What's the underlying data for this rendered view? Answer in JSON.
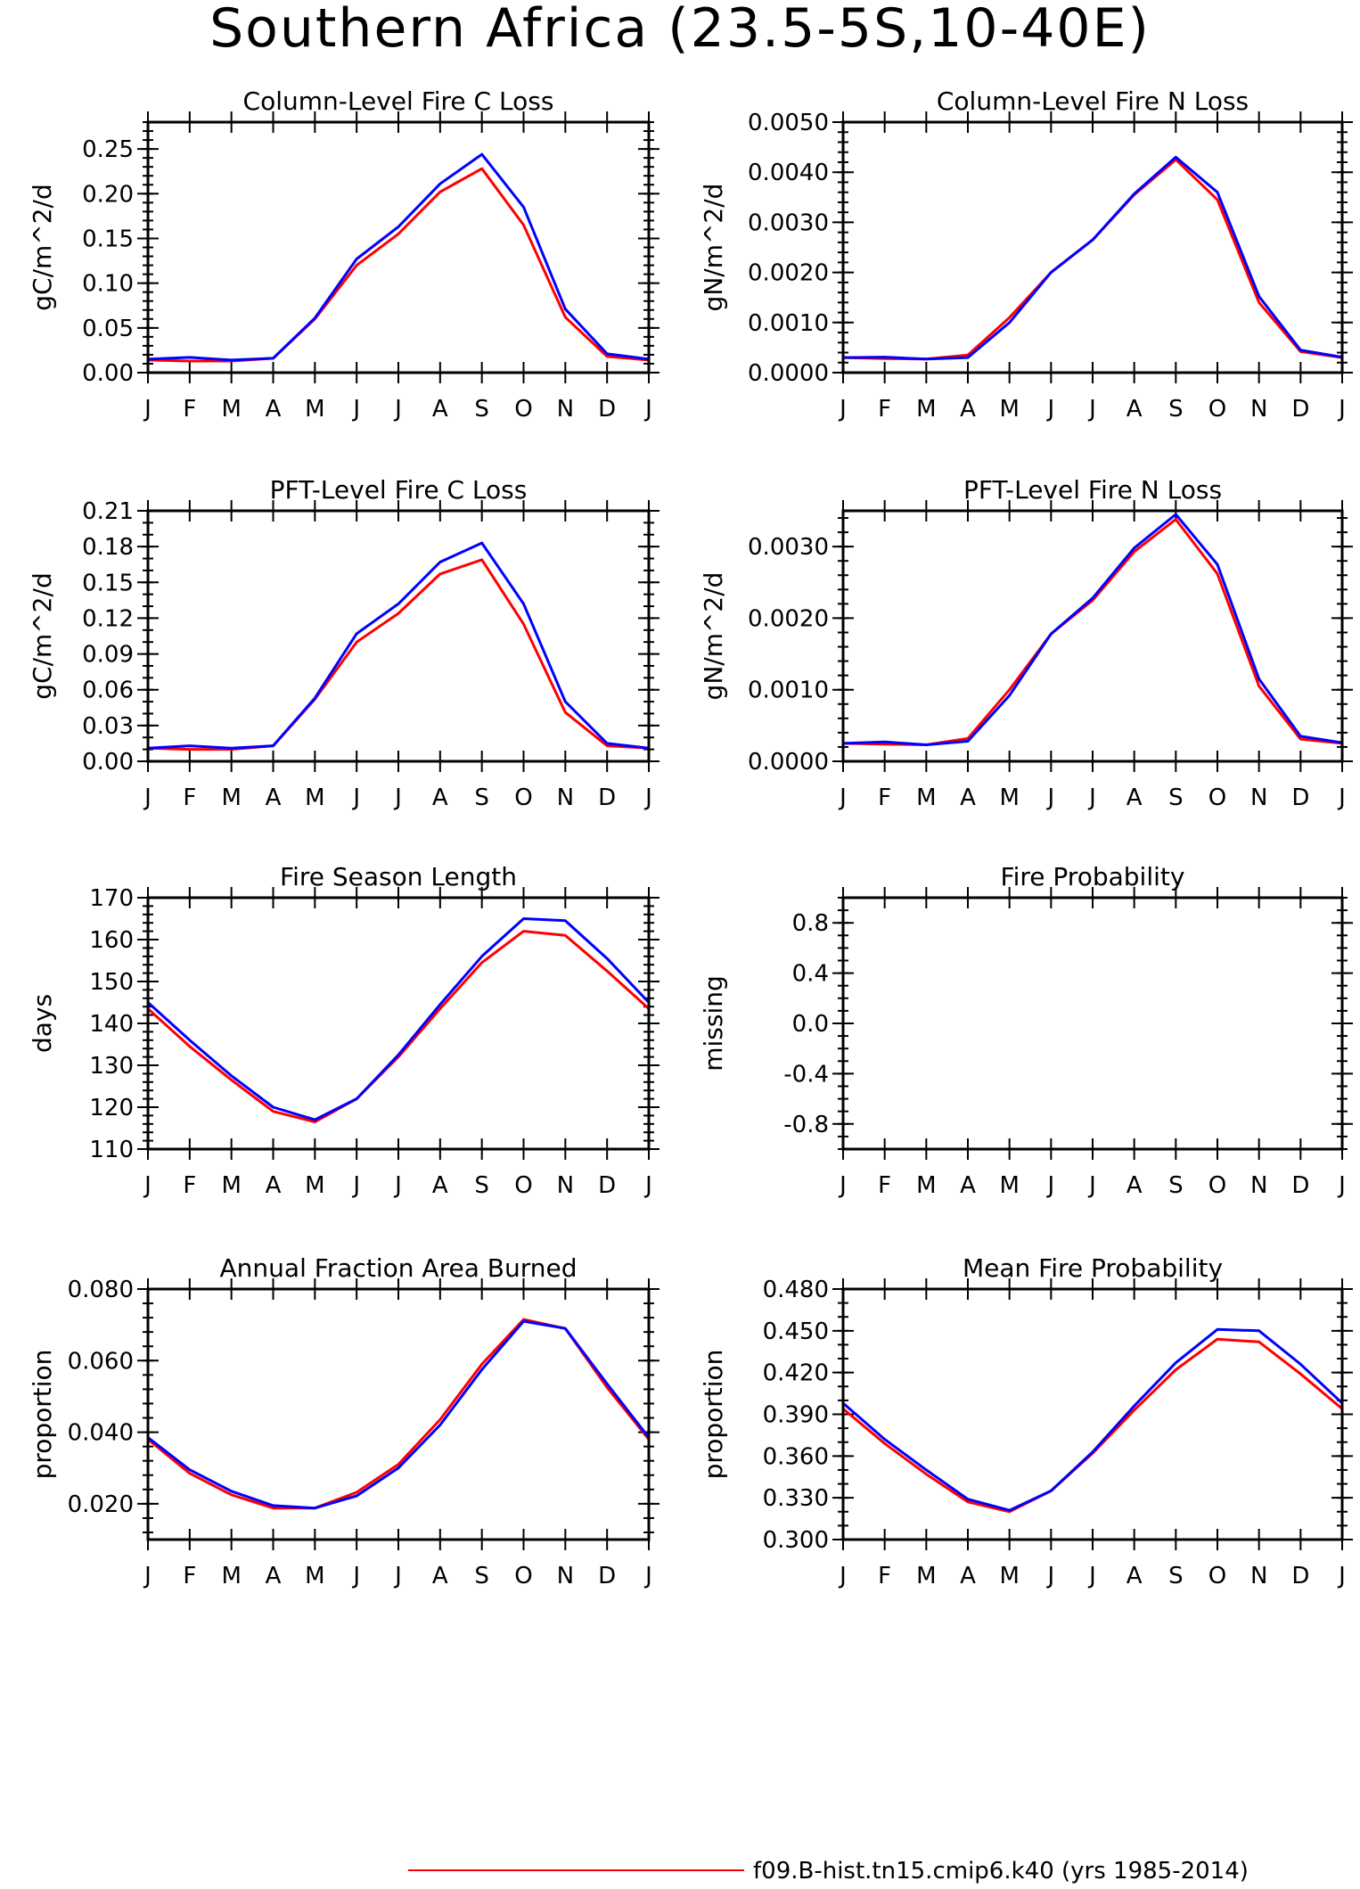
{
  "figure": {
    "title": "Southern Africa (23.5-5S,10-40E)",
    "colors": {
      "series_red": "#ff0000",
      "series_blue": "#0000ff",
      "axes": "#000000"
    },
    "legend": [
      {
        "label": "f09.B-hist.tn15.cmip6.k40 (yrs 1985-2014)",
        "color": "#ff0000"
      }
    ]
  },
  "chart_data": [
    {
      "type": "line",
      "title": "Column-Level Fire C Loss",
      "ylabel": "gC/m^2/d",
      "categories": [
        "J",
        "F",
        "M",
        "A",
        "M",
        "J",
        "J",
        "A",
        "S",
        "O",
        "N",
        "D",
        "J"
      ],
      "ylim": [
        0,
        0.28
      ],
      "yticks": [
        0,
        0.05,
        0.1,
        0.15,
        0.2,
        0.25
      ],
      "ytick_labels": [
        "0.00",
        "0.05",
        "0.10",
        "0.15",
        "0.20",
        "0.25"
      ],
      "yminor": 0.01,
      "series": [
        {
          "color": "#ff0000",
          "values": [
            0.014,
            0.013,
            0.013,
            0.016,
            0.06,
            0.12,
            0.155,
            0.202,
            0.228,
            0.165,
            0.062,
            0.018,
            0.014
          ]
        },
        {
          "color": "#0000ff",
          "values": [
            0.015,
            0.017,
            0.014,
            0.016,
            0.061,
            0.127,
            0.163,
            0.211,
            0.244,
            0.185,
            0.071,
            0.021,
            0.015
          ]
        }
      ]
    },
    {
      "type": "line",
      "title": "Column-Level Fire N Loss",
      "ylabel": "gN/m^2/d",
      "categories": [
        "J",
        "F",
        "M",
        "A",
        "M",
        "J",
        "J",
        "A",
        "S",
        "O",
        "N",
        "D",
        "J"
      ],
      "ylim": [
        0,
        0.005
      ],
      "yticks": [
        0,
        0.001,
        0.002,
        0.003,
        0.004,
        0.005
      ],
      "ytick_labels": [
        "0.0000",
        "0.0010",
        "0.0020",
        "0.0030",
        "0.0040",
        "0.0050"
      ],
      "yminor": 0.0002,
      "series": [
        {
          "color": "#ff0000",
          "values": [
            0.0003,
            0.00028,
            0.00027,
            0.00035,
            0.0011,
            0.002,
            0.00265,
            0.00355,
            0.00425,
            0.00345,
            0.0014,
            0.00042,
            0.0003
          ]
        },
        {
          "color": "#0000ff",
          "values": [
            0.0003,
            0.00031,
            0.00027,
            0.0003,
            0.001,
            0.002,
            0.00265,
            0.00357,
            0.0043,
            0.0036,
            0.00152,
            0.00045,
            0.00031
          ]
        }
      ]
    },
    {
      "type": "line",
      "title": "PFT-Level Fire C Loss",
      "ylabel": "gC/m^2/d",
      "categories": [
        "J",
        "F",
        "M",
        "A",
        "M",
        "J",
        "J",
        "A",
        "S",
        "O",
        "N",
        "D",
        "J"
      ],
      "ylim": [
        0,
        0.21
      ],
      "yticks": [
        0,
        0.03,
        0.06,
        0.09,
        0.12,
        0.15,
        0.18,
        0.21
      ],
      "ytick_labels": [
        "0.00",
        "0.03",
        "0.06",
        "0.09",
        "0.12",
        "0.15",
        "0.18",
        "0.21"
      ],
      "yminor": 0.01,
      "series": [
        {
          "color": "#ff0000",
          "values": [
            0.011,
            0.01,
            0.01,
            0.013,
            0.052,
            0.1,
            0.124,
            0.157,
            0.169,
            0.115,
            0.041,
            0.013,
            0.011
          ]
        },
        {
          "color": "#0000ff",
          "values": [
            0.011,
            0.013,
            0.011,
            0.013,
            0.053,
            0.107,
            0.132,
            0.167,
            0.183,
            0.132,
            0.05,
            0.015,
            0.011
          ]
        }
      ]
    },
    {
      "type": "line",
      "title": "PFT-Level Fire N Loss",
      "ylabel": "gN/m^2/d",
      "categories": [
        "J",
        "F",
        "M",
        "A",
        "M",
        "J",
        "J",
        "A",
        "S",
        "O",
        "N",
        "D",
        "J"
      ],
      "ylim": [
        0,
        0.0035
      ],
      "yticks": [
        0,
        0.001,
        0.002,
        0.003
      ],
      "ytick_labels": [
        "0.0000",
        "0.0010",
        "0.0020",
        "0.0030"
      ],
      "yminor": 0.0002,
      "series": [
        {
          "color": "#ff0000",
          "values": [
            0.00025,
            0.00024,
            0.00023,
            0.00032,
            0.001,
            0.00178,
            0.00225,
            0.00293,
            0.00338,
            0.00262,
            0.00105,
            0.00031,
            0.00025
          ]
        },
        {
          "color": "#0000ff",
          "values": [
            0.00025,
            0.00027,
            0.00023,
            0.00028,
            0.00092,
            0.00178,
            0.00228,
            0.00298,
            0.00345,
            0.00275,
            0.00115,
            0.00035,
            0.00026
          ]
        }
      ]
    },
    {
      "type": "line",
      "title": "Fire Season Length",
      "ylabel": "days",
      "categories": [
        "J",
        "F",
        "M",
        "A",
        "M",
        "J",
        "J",
        "A",
        "S",
        "O",
        "N",
        "D",
        "J"
      ],
      "ylim": [
        110,
        170
      ],
      "yticks": [
        110,
        120,
        130,
        140,
        150,
        160,
        170
      ],
      "ytick_labels": [
        "110",
        "120",
        "130",
        "140",
        "150",
        "160",
        "170"
      ],
      "yminor": 2,
      "series": [
        {
          "color": "#ff0000",
          "values": [
            143.5,
            134.5,
            126.5,
            119.0,
            116.5,
            122.0,
            132.0,
            143.5,
            154.5,
            162.0,
            161.0,
            152.5,
            143.5
          ]
        },
        {
          "color": "#0000ff",
          "values": [
            145.0,
            136.0,
            127.5,
            120.0,
            117.0,
            122.0,
            132.5,
            144.5,
            156.0,
            165.0,
            164.5,
            155.5,
            145.0
          ]
        }
      ]
    },
    {
      "type": "line",
      "title": "Fire Probability",
      "ylabel": "missing",
      "categories": [
        "J",
        "F",
        "M",
        "A",
        "M",
        "J",
        "J",
        "A",
        "S",
        "O",
        "N",
        "D",
        "J"
      ],
      "ylim": [
        -1,
        1
      ],
      "yticks": [
        -0.8,
        -0.4,
        0.0,
        0.4,
        0.8
      ],
      "ytick_labels": [
        "-0.8",
        "-0.4",
        "0.0",
        "0.4",
        "0.8"
      ],
      "yminor": 0.1,
      "series": []
    },
    {
      "type": "line",
      "title": "Annual Fraction Area Burned",
      "ylabel": "proportion",
      "categories": [
        "J",
        "F",
        "M",
        "A",
        "M",
        "J",
        "J",
        "A",
        "S",
        "O",
        "N",
        "D",
        "J"
      ],
      "ylim": [
        0.01,
        0.08
      ],
      "yticks": [
        0.02,
        0.04,
        0.06,
        0.08
      ],
      "ytick_labels": [
        "0.020",
        "0.040",
        "0.060",
        "0.080"
      ],
      "yminor": 0.004,
      "series": [
        {
          "color": "#ff0000",
          "values": [
            0.038,
            0.0285,
            0.0225,
            0.0188,
            0.0188,
            0.0232,
            0.031,
            0.0435,
            0.059,
            0.0715,
            0.069,
            0.0525,
            0.038
          ]
        },
        {
          "color": "#0000ff",
          "values": [
            0.0385,
            0.0295,
            0.0235,
            0.0195,
            0.0188,
            0.0222,
            0.03,
            0.042,
            0.0575,
            0.071,
            0.069,
            0.0535,
            0.0385
          ]
        }
      ]
    },
    {
      "type": "line",
      "title": "Mean Fire Probability",
      "ylabel": "proportion",
      "categories": [
        "J",
        "F",
        "M",
        "A",
        "M",
        "J",
        "J",
        "A",
        "S",
        "O",
        "N",
        "D",
        "J"
      ],
      "ylim": [
        0.3,
        0.48
      ],
      "yticks": [
        0.3,
        0.33,
        0.36,
        0.39,
        0.42,
        0.45,
        0.48
      ],
      "ytick_labels": [
        "0.300",
        "0.330",
        "0.360",
        "0.390",
        "0.420",
        "0.450",
        "0.480"
      ],
      "yminor": 0.01,
      "series": [
        {
          "color": "#ff0000",
          "values": [
            0.394,
            0.369,
            0.347,
            0.327,
            0.32,
            0.335,
            0.362,
            0.393,
            0.422,
            0.444,
            0.442,
            0.419,
            0.394
          ]
        },
        {
          "color": "#0000ff",
          "values": [
            0.398,
            0.372,
            0.35,
            0.329,
            0.321,
            0.335,
            0.363,
            0.396,
            0.427,
            0.451,
            0.45,
            0.426,
            0.398
          ]
        }
      ]
    }
  ]
}
